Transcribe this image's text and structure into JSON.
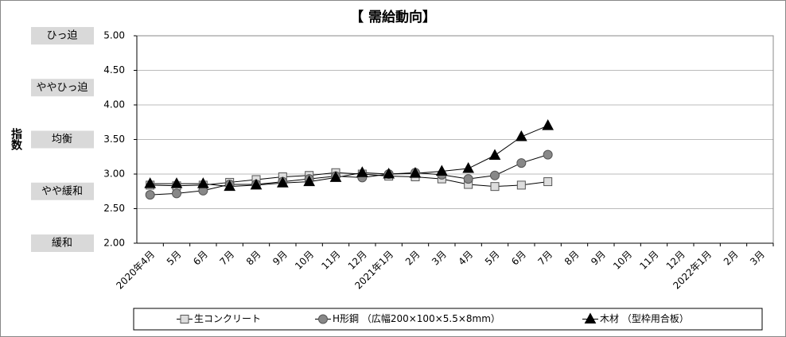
{
  "chart_data": {
    "type": "line",
    "title": "【 需給動向】",
    "y_label": "指数",
    "levels": [
      {
        "value": 5.0,
        "label": "ひっ迫"
      },
      {
        "value": 4.25,
        "label": "ややひっ迫"
      },
      {
        "value": 3.5,
        "label": "均衡"
      },
      {
        "value": 2.75,
        "label": "やや緩和"
      },
      {
        "value": 2.0,
        "label": "緩和"
      }
    ],
    "categories": [
      "2020年4月",
      "5月",
      "6月",
      "7月",
      "8月",
      "9月",
      "10月",
      "11月",
      "12月",
      "2021年1月",
      "2月",
      "3月",
      "4月",
      "5月",
      "6月",
      "7月",
      "8月",
      "9月",
      "10月",
      "11月",
      "12月",
      "2022年1月",
      "2月",
      "3月"
    ],
    "ylim": [
      2,
      5
    ],
    "yticks": [
      {
        "value": 2,
        "label": "2.00"
      },
      {
        "value": 2.5,
        "label": "2.50"
      },
      {
        "value": 3,
        "label": "3.00"
      },
      {
        "value": 3.5,
        "label": "3.50"
      },
      {
        "value": 4,
        "label": "4.00"
      },
      {
        "value": 4.5,
        "label": "4.50"
      },
      {
        "value": 5,
        "label": "5.00"
      }
    ],
    "grid": true,
    "legend": "bottom",
    "series": [
      {
        "name": "生コンクリート",
        "color": "#000000",
        "marker": "square",
        "marker_color": "#dddddd",
        "values": [
          2.84,
          2.83,
          2.84,
          2.88,
          2.92,
          2.96,
          2.98,
          3.02,
          3.0,
          2.97,
          2.96,
          2.93,
          2.85,
          2.82,
          2.84,
          2.89,
          null,
          null,
          null,
          null,
          null,
          null,
          null,
          null
        ]
      },
      {
        "name": "H形鋼 （広幅200×100×5.5×8mm）",
        "color": "#000000",
        "marker": "circle",
        "marker_color": "#888888",
        "values": [
          2.7,
          2.72,
          2.76,
          2.85,
          2.85,
          2.89,
          2.93,
          2.97,
          2.95,
          3.0,
          3.02,
          2.99,
          2.93,
          2.98,
          3.16,
          3.28,
          null,
          null,
          null,
          null,
          null,
          null,
          null,
          null
        ]
      },
      {
        "name": "木材 （型枠用合板）",
        "color": "#000000",
        "marker": "triangle",
        "marker_color": "#000000",
        "values": [
          2.86,
          2.86,
          2.86,
          2.82,
          2.84,
          2.87,
          2.89,
          2.95,
          3.02,
          3.0,
          3.01,
          3.04,
          3.08,
          3.27,
          3.54,
          3.7,
          null,
          null,
          null,
          null,
          null,
          null,
          null,
          null
        ]
      }
    ]
  }
}
